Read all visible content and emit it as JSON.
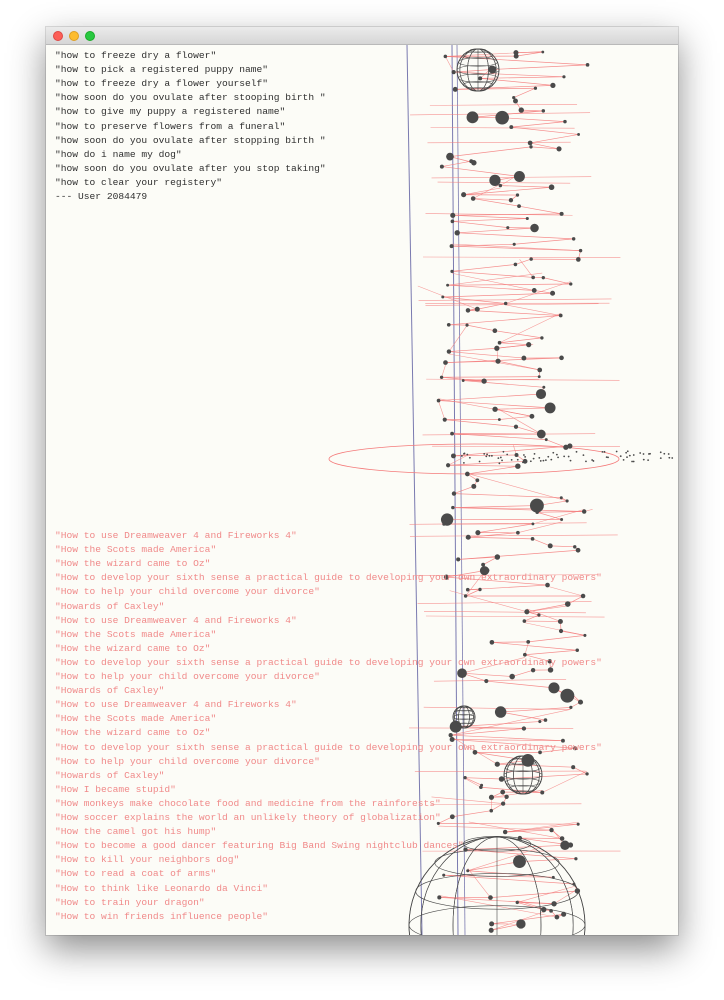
{
  "window": {
    "controls": [
      "close",
      "minimize",
      "zoom"
    ]
  },
  "user_queries": [
    "\"how to freeze dry a flower\"",
    "\"how to pick a registered puppy name\"",
    "\"how to freeze dry a flower yourself\"",
    "\"how soon do you ovulate after stooping birth \"",
    "\"how to give my puppy a registered name\"",
    "\"how to preserve flowers from a funeral\"",
    "\"how soon do you ovulate after stopping birth \"",
    "\"how do i name my dog\"",
    "\"how soon do you ovulate after you stop taking\"",
    "\"how to clear your registery\""
  ],
  "user_label": "--- User 2084479",
  "book_titles": [
    "\"How to use Dreamweaver 4 and Fireworks 4\"",
    "\"How the Scots made America\"",
    "\"How the wizard came to Oz\"",
    "\"How to develop your sixth sense a practical guide to developing your own extraordinary powers\"",
    "\"How to help your child overcome your divorce\"",
    "\"Howards of Caxley\"",
    "\"How to use Dreamweaver 4 and Fireworks 4\"",
    "\"How the Scots made America\"",
    "\"How the wizard came to Oz\"",
    "\"How to develop your sixth sense a practical guide to developing your own extraordinary powers\"",
    "\"How to help your child overcome your divorce\"",
    "\"Howards of Caxley\"",
    "\"How to use Dreamweaver 4 and Fireworks 4\"",
    "\"How the Scots made America\"",
    "\"How the wizard came to Oz\"",
    "\"How to develop your sixth sense a practical guide to developing your own extraordinary powers\"",
    "\"How to help your child overcome your divorce\"",
    "\"Howards of Caxley\"",
    "\"How I became stupid\"",
    "\"How monkeys make chocolate food and medicine from the rainforests\"",
    "\"How soccer explains the world an unlikely theory of globalization\"",
    "\"How the camel got his hump\"",
    "\"How to become a good dancer featuring Big Band Swing nightclub dances\"",
    "\"How to kill your neighbors dog\"",
    "\"How to read a coat of arms\"",
    "\"How to think like Leonardo da Vinci\"",
    "\"How to train your dragon\"",
    "\"How to win friends influence people\""
  ],
  "colors": {
    "window_bg": "#fcfcf7",
    "query_text": "#2f2f2f",
    "title_text": "#f08a8a",
    "edge": "#f47a7a",
    "node": "#4a4a4a",
    "axis": "#7a7ab0"
  }
}
